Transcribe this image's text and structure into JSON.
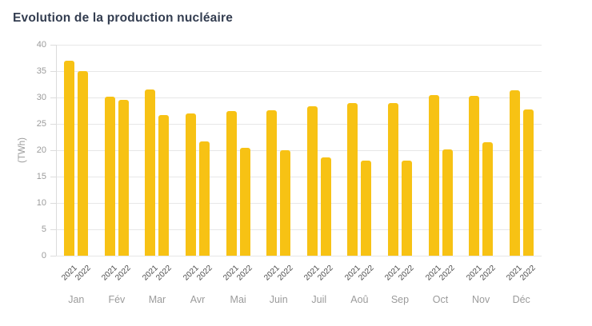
{
  "title": "Evolution de la production nucléaire",
  "colors": {
    "background": "#FFFFFF",
    "bar": "#F7C214",
    "title_text": "#333D50",
    "grid": "#E7E7E7",
    "axis_line": "#DCDCDC",
    "y_tick_text": "#9B9B9B",
    "month_text": "#9B9B9B",
    "year_text": "#4A4A4A"
  },
  "chart_data": {
    "type": "bar",
    "title": "Evolution de la production nucléaire",
    "categories": [
      "Jan",
      "Fév",
      "Mar",
      "Avr",
      "Mai",
      "Juin",
      "Juil",
      "Aoû",
      "Sep",
      "Oct",
      "Nov",
      "Déc"
    ],
    "series": [
      {
        "name": "2021",
        "values": [
          37.0,
          30.2,
          31.5,
          27.0,
          27.5,
          27.6,
          28.3,
          28.9,
          28.9,
          30.5,
          30.3,
          31.3
        ]
      },
      {
        "name": "2022",
        "values": [
          35.0,
          29.5,
          26.7,
          21.6,
          20.4,
          20.0,
          18.6,
          18.0,
          18.1,
          20.1,
          21.5,
          27.8
        ]
      }
    ],
    "xlabel": "",
    "ylabel": "(TWh)",
    "ylim": [
      0,
      40
    ],
    "yticks": [
      0,
      5,
      10,
      15,
      20,
      25,
      30,
      35,
      40
    ],
    "grid": true,
    "legend_position": "none",
    "bar_group_labels": "series name repeated under each bar, rotated 45°"
  }
}
